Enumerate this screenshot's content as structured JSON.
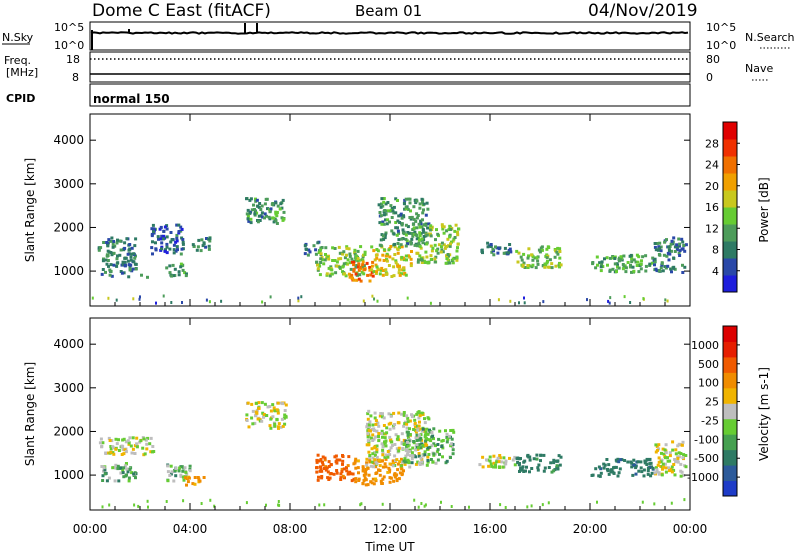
{
  "header": {
    "station": "Dome C East (fitACF)",
    "beam": "Beam 01",
    "date": "04/Nov/2019"
  },
  "top_panels": {
    "nsky_label": "N.Sky",
    "nsky_ticks": [
      "10^5",
      "10^0"
    ],
    "nsearch_label": "N.Search",
    "nsearch_ticks": [
      "10^5",
      "10^0"
    ],
    "freq_label": "Freq.",
    "freq_unit": "[MHz]",
    "freq_ticks": [
      "18",
      "8"
    ],
    "nave_label": "Nave",
    "nave_ticks": [
      "80",
      "0"
    ],
    "cpid_label": "CPID",
    "cpid_value": "normal 150"
  },
  "colors": {
    "power_scale": [
      "#1e1edc",
      "#2a48a8",
      "#2e7a64",
      "#4d9c5a",
      "#66cc33",
      "#c8c81e",
      "#f0a000",
      "#f07000",
      "#f03000",
      "#e00000"
    ],
    "velocity_scale": [
      "#1e3cc8",
      "#2c5a9a",
      "#2e7a64",
      "#45a050",
      "#66cc33",
      "#bebebe",
      "#f0b400",
      "#f08c00",
      "#f05a00",
      "#e61e00",
      "#dc0000"
    ]
  },
  "chart_data": [
    {
      "type": "heatmap",
      "name": "power",
      "ylabel": "Slant Range [km]",
      "yticks": [
        "1000",
        "2000",
        "3000",
        "4000"
      ],
      "ylim": [
        200,
        4600
      ],
      "xlim": [
        0,
        24
      ],
      "colorbar": {
        "label": "Power [dB]",
        "ticks": [
          "4",
          "8",
          "12",
          "16",
          "20",
          "24",
          "28"
        ],
        "range": [
          0,
          32
        ]
      },
      "echo_regions": [
        {
          "t": [
            0.3,
            1.8
          ],
          "r": [
            900,
            1800
          ],
          "value": 8
        },
        {
          "t": [
            2.0,
            2.3
          ],
          "r": [
            850,
            950
          ],
          "value": 6
        },
        {
          "t": [
            2.4,
            3.7
          ],
          "r": [
            1400,
            2100
          ],
          "value": 6
        },
        {
          "t": [
            3.0,
            3.8
          ],
          "r": [
            900,
            1200
          ],
          "value": 10
        },
        {
          "t": [
            4.0,
            4.8
          ],
          "r": [
            1500,
            1800
          ],
          "value": 8
        },
        {
          "t": [
            6.2,
            7.8
          ],
          "r": [
            2100,
            2700
          ],
          "value": 10
        },
        {
          "t": [
            8.5,
            9.2
          ],
          "r": [
            1400,
            1700
          ],
          "value": 8
        },
        {
          "t": [
            9.0,
            11.0
          ],
          "r": [
            900,
            1600
          ],
          "value": 14
        },
        {
          "t": [
            10.3,
            11.3
          ],
          "r": [
            800,
            1250
          ],
          "value": 24
        },
        {
          "t": [
            11.2,
            12.8
          ],
          "r": [
            900,
            1600
          ],
          "value": 18
        },
        {
          "t": [
            11.5,
            13.5
          ],
          "r": [
            1600,
            2700
          ],
          "value": 10
        },
        {
          "t": [
            13.0,
            14.7
          ],
          "r": [
            1200,
            2100
          ],
          "value": 14
        },
        {
          "t": [
            15.5,
            16.8
          ],
          "r": [
            1400,
            1700
          ],
          "value": 8
        },
        {
          "t": [
            17.0,
            18.8
          ],
          "r": [
            1100,
            1600
          ],
          "value": 14
        },
        {
          "t": [
            20.0,
            22.5
          ],
          "r": [
            1000,
            1400
          ],
          "value": 12
        },
        {
          "t": [
            22.5,
            23.8
          ],
          "r": [
            1000,
            1800
          ],
          "value": 8
        }
      ]
    },
    {
      "type": "heatmap",
      "name": "velocity",
      "ylabel": "Slant Range [km]",
      "yticks": [
        "1000",
        "2000",
        "3000",
        "4000"
      ],
      "ylim": [
        200,
        4600
      ],
      "xlim": [
        0,
        24
      ],
      "xticks": [
        "00:00",
        "04:00",
        "08:00",
        "12:00",
        "16:00",
        "20:00",
        "00:00"
      ],
      "xlabel": "Time UT",
      "colorbar": {
        "label": "Velocity [m s-1]",
        "ticks": [
          "1000",
          "500",
          "100",
          "25",
          "-25",
          "-100",
          "-500",
          "-1000"
        ]
      },
      "echo_regions": [
        {
          "t": [
            0.3,
            1.8
          ],
          "r": [
            900,
            1300
          ],
          "value": 60
        },
        {
          "t": [
            0.3,
            2.5
          ],
          "r": [
            1500,
            1900
          ],
          "value": 0
        },
        {
          "t": [
            3.0,
            4.0
          ],
          "r": [
            850,
            1300
          ],
          "value": 60
        },
        {
          "t": [
            3.7,
            4.6
          ],
          "r": [
            800,
            1000
          ],
          "value": -120
        },
        {
          "t": [
            6.2,
            7.8
          ],
          "r": [
            2100,
            2700
          ],
          "value": 0
        },
        {
          "t": [
            9.0,
            10.5
          ],
          "r": [
            900,
            1500
          ],
          "value": -300
        },
        {
          "t": [
            10.5,
            12.5
          ],
          "r": [
            800,
            1400
          ],
          "value": -150
        },
        {
          "t": [
            11.0,
            13.5
          ],
          "r": [
            1200,
            2500
          ],
          "value": 0
        },
        {
          "t": [
            12.5,
            14.5
          ],
          "r": [
            1300,
            2100
          ],
          "value": 60
        },
        {
          "t": [
            15.5,
            17.0
          ],
          "r": [
            1200,
            1500
          ],
          "value": 0
        },
        {
          "t": [
            17.0,
            18.8
          ],
          "r": [
            1100,
            1500
          ],
          "value": 150
        },
        {
          "t": [
            20.0,
            22.5
          ],
          "r": [
            1000,
            1400
          ],
          "value": 200
        },
        {
          "t": [
            22.5,
            23.8
          ],
          "r": [
            1000,
            1800
          ],
          "value": 0
        }
      ]
    }
  ]
}
